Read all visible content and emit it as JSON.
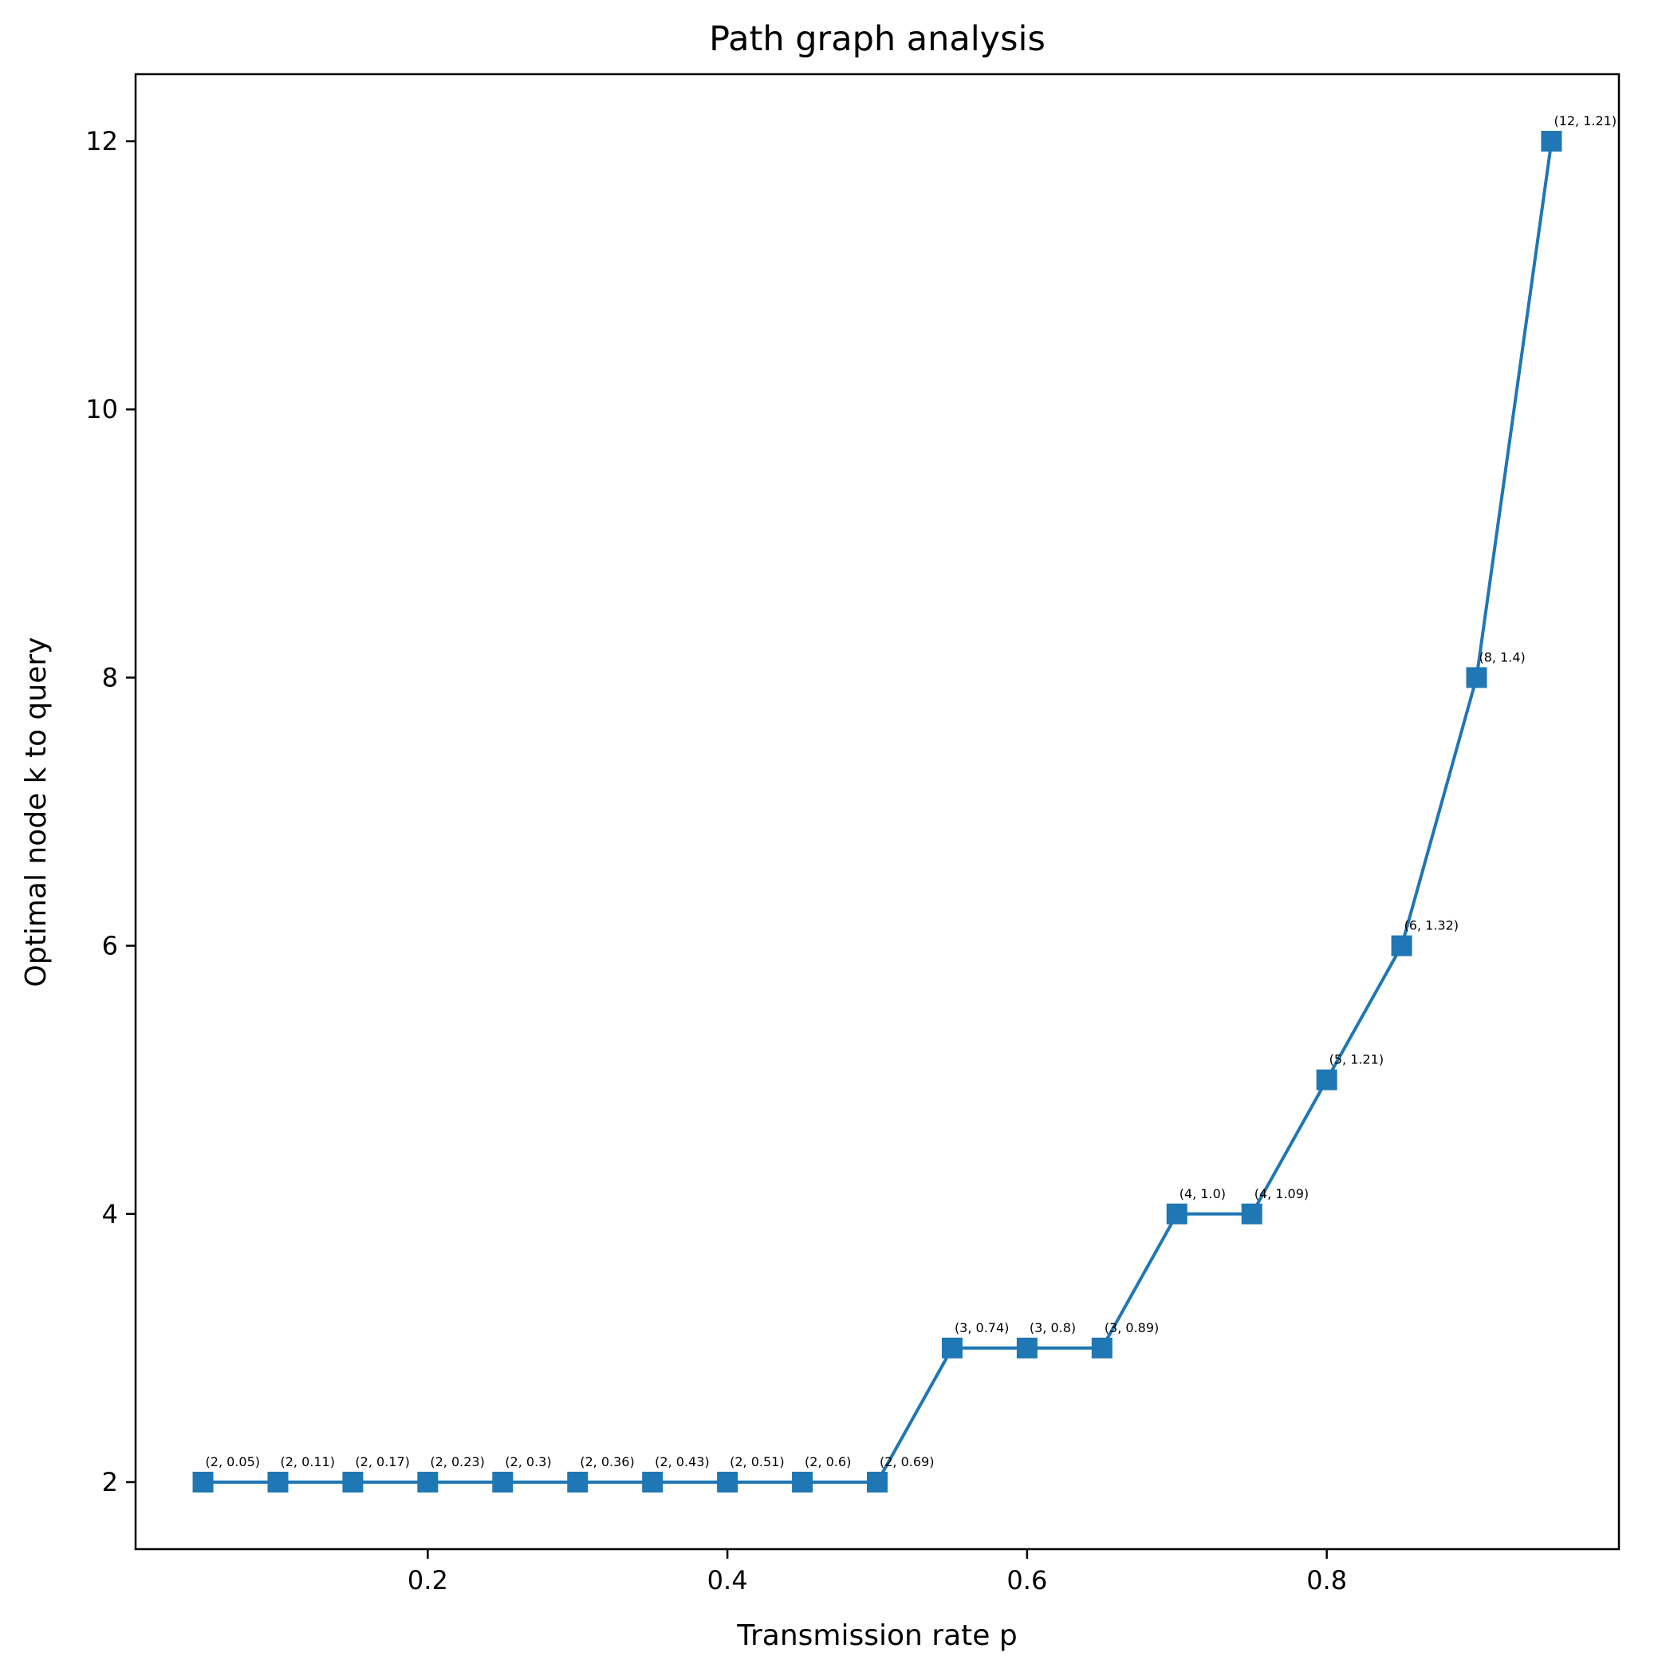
{
  "chart_data": {
    "type": "line",
    "title": "Path graph analysis",
    "xlabel": "Transmission rate p",
    "ylabel": "Optimal node k to query",
    "xlim": [
      0.005,
      0.995
    ],
    "ylim": [
      1.5,
      12.5
    ],
    "xticks": [
      0.2,
      0.4,
      0.6,
      0.8
    ],
    "xtick_labels": [
      "0.2",
      "0.4",
      "0.6",
      "0.8"
    ],
    "yticks": [
      2,
      4,
      6,
      8,
      10,
      12
    ],
    "ytick_labels": [
      "2",
      "4",
      "6",
      "8",
      "10",
      "12"
    ],
    "grid": false,
    "marker": "square",
    "color": "#1f77b4",
    "series": [
      {
        "x": [
          0.05,
          0.1,
          0.15,
          0.2,
          0.25,
          0.3,
          0.35,
          0.4,
          0.45,
          0.5,
          0.55,
          0.6,
          0.65,
          0.7,
          0.75,
          0.8,
          0.85,
          0.9,
          0.95
        ],
        "y": [
          2,
          2,
          2,
          2,
          2,
          2,
          2,
          2,
          2,
          2,
          3,
          3,
          3,
          4,
          4,
          5,
          6,
          8,
          12
        ]
      }
    ],
    "annotations": [
      "(2, 0.05)",
      "(2, 0.11)",
      "(2, 0.17)",
      "(2, 0.23)",
      "(2, 0.3)",
      "(2, 0.36)",
      "(2, 0.43)",
      "(2, 0.51)",
      "(2, 0.6)",
      "(2, 0.69)",
      "(3, 0.74)",
      "(3, 0.8)",
      "(3, 0.89)",
      "(4, 1.0)",
      "(4, 1.09)",
      "(5, 1.21)",
      "(6, 1.32)",
      "(8, 1.4)",
      "(12, 1.21)"
    ]
  }
}
